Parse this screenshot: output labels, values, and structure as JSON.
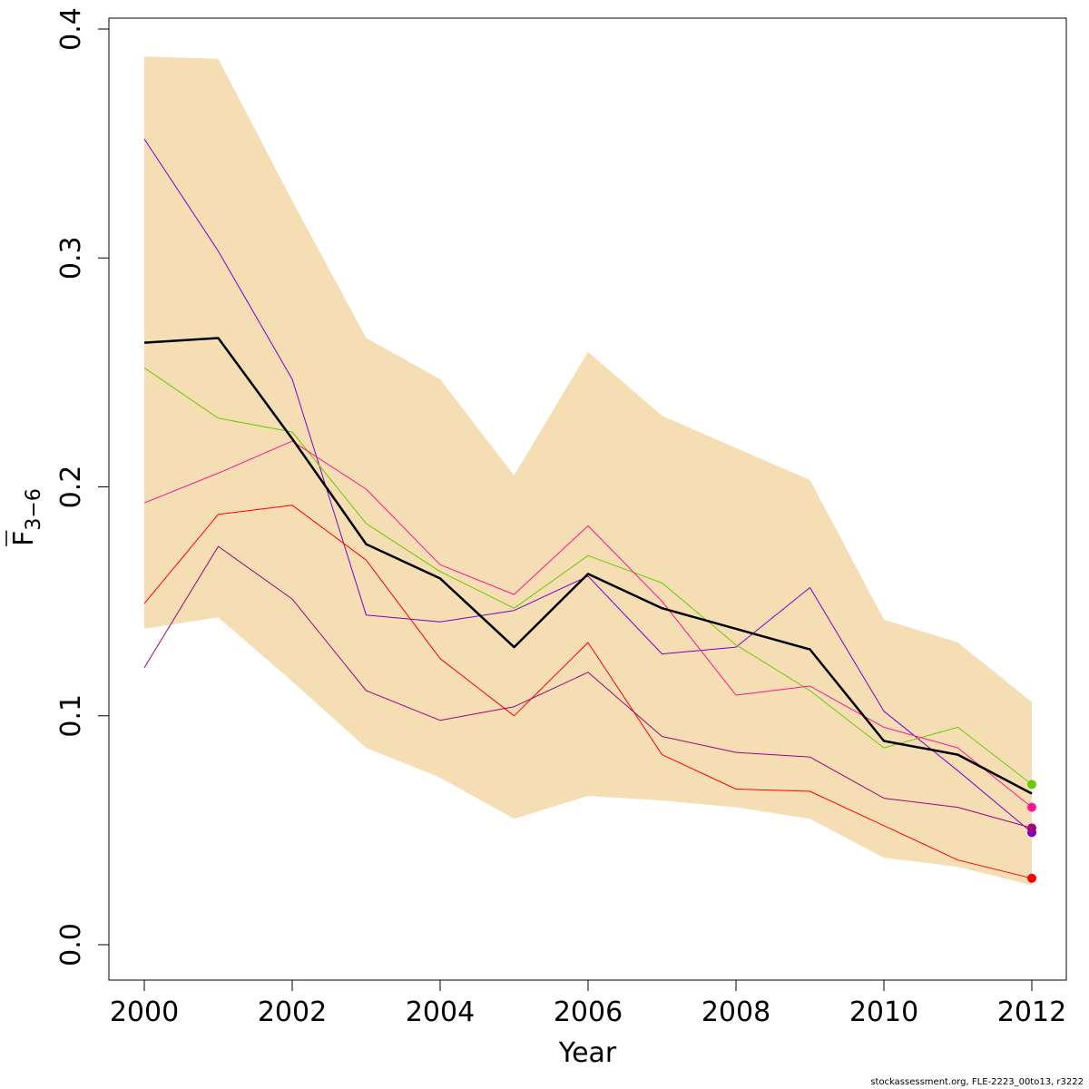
{
  "chart_data": {
    "type": "line",
    "xlabel": "Year",
    "ylabel": "F",
    "ylabel_sub": "3−6",
    "xlim": [
      2000,
      2012
    ],
    "ylim": [
      0.0,
      0.4
    ],
    "x_ticks": [
      "2000",
      "2002",
      "2004",
      "2006",
      "2008",
      "2010",
      "2012"
    ],
    "y_ticks": [
      "0.0",
      "0.1",
      "0.2",
      "0.3",
      "0.4"
    ],
    "grid": false,
    "x": [
      2000,
      2001,
      2002,
      2003,
      2004,
      2005,
      2006,
      2007,
      2008,
      2009,
      2010,
      2011,
      2012
    ],
    "band": {
      "color": "#f5deb3",
      "lower": [
        0.138,
        0.143,
        0.115,
        0.086,
        0.073,
        0.055,
        0.065,
        0.063,
        0.06,
        0.055,
        0.038,
        0.034,
        0.026
      ],
      "upper": [
        0.388,
        0.387,
        0.325,
        0.265,
        0.247,
        0.205,
        0.259,
        0.231,
        0.217,
        0.203,
        0.142,
        0.132,
        0.106
      ]
    },
    "series": [
      {
        "color": "#000000",
        "width": 2.5,
        "endpoint": false,
        "values": [
          0.263,
          0.265,
          0.221,
          0.175,
          0.16,
          0.13,
          0.162,
          0.147,
          0.138,
          0.129,
          0.089,
          0.083,
          0.066
        ]
      },
      {
        "color": "#7b00c8",
        "width": 1,
        "endpoint": true,
        "values": [
          0.352,
          0.303,
          0.247,
          0.144,
          0.141,
          0.146,
          0.161,
          0.127,
          0.13,
          0.156,
          0.102,
          0.076,
          0.049
        ]
      },
      {
        "color": "#66cc00",
        "width": 1,
        "endpoint": true,
        "values": [
          0.252,
          0.23,
          0.224,
          0.184,
          0.163,
          0.147,
          0.17,
          0.158,
          0.131,
          0.111,
          0.086,
          0.095,
          0.07
        ]
      },
      {
        "color": "#ff1493",
        "width": 1,
        "endpoint": true,
        "values": [
          0.193,
          0.206,
          0.22,
          0.199,
          0.166,
          0.153,
          0.183,
          0.15,
          0.109,
          0.113,
          0.095,
          0.086,
          0.06
        ]
      },
      {
        "color": "#ff0000",
        "width": 1,
        "endpoint": true,
        "values": [
          0.149,
          0.188,
          0.192,
          0.168,
          0.125,
          0.1,
          0.132,
          0.083,
          0.068,
          0.067,
          0.052,
          0.037,
          0.029
        ]
      },
      {
        "color": "#a0007a",
        "width": 1,
        "endpoint": true,
        "values": [
          0.121,
          0.174,
          0.151,
          0.111,
          0.098,
          0.104,
          0.119,
          0.091,
          0.084,
          0.082,
          0.064,
          0.06,
          0.051
        ]
      }
    ]
  },
  "footer": "stockassessment.org, FLE-2223_00to13, r3222"
}
